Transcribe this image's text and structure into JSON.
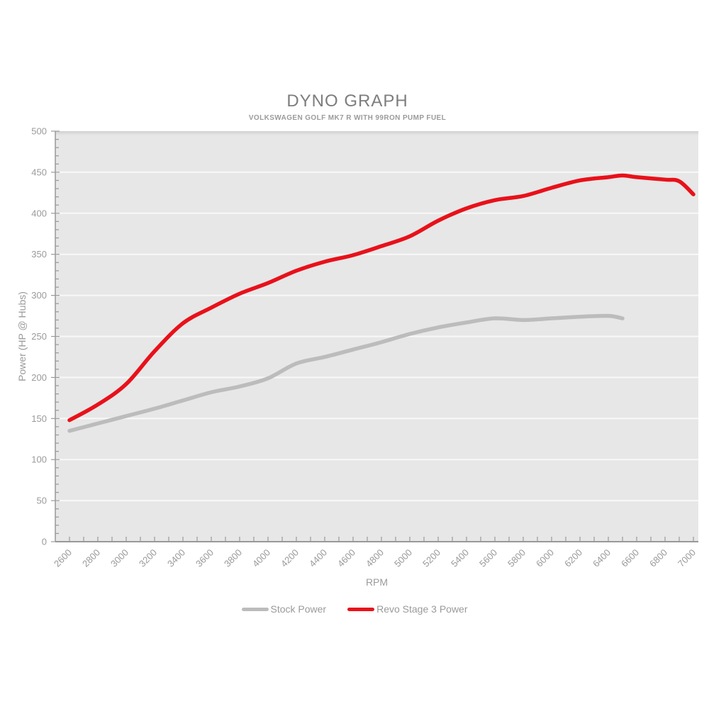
{
  "chart_data": {
    "type": "line",
    "title": "DYNO GRAPH",
    "subtitle": "VOLKSWAGEN GOLF MK7 R WITH 99RON PUMP FUEL",
    "xlabel": "RPM",
    "ylabel": "Power (HP @ Hubs)",
    "xlim": [
      2600,
      7000
    ],
    "ylim": [
      0,
      500
    ],
    "x_tick_label_step": 200,
    "x_minor_tick_step": 100,
    "y_tick_label_step": 50,
    "y_minor_tick_step": 10,
    "grid": "horizontal-only",
    "legend_position": "bottom-center",
    "plot_background": "#e7e7e7",
    "grid_color": "#f8f8f8",
    "axis_color": "#999999",
    "label_color": "#9a9a9a",
    "series": [
      {
        "name": "Stock Power",
        "color": "#bcbcbc",
        "points": [
          [
            2600,
            135
          ],
          [
            2800,
            144
          ],
          [
            3000,
            153
          ],
          [
            3200,
            162
          ],
          [
            3400,
            172
          ],
          [
            3600,
            182
          ],
          [
            3800,
            189
          ],
          [
            4000,
            199
          ],
          [
            4200,
            217
          ],
          [
            4400,
            225
          ],
          [
            4600,
            234
          ],
          [
            4800,
            243
          ],
          [
            5000,
            253
          ],
          [
            5200,
            261
          ],
          [
            5400,
            267
          ],
          [
            5600,
            272
          ],
          [
            5800,
            270
          ],
          [
            6000,
            272
          ],
          [
            6200,
            274
          ],
          [
            6400,
            275
          ],
          [
            6500,
            272
          ]
        ]
      },
      {
        "name": "Revo Stage 3 Power",
        "color": "#e8111a",
        "points": [
          [
            2600,
            148
          ],
          [
            2800,
            167
          ],
          [
            3000,
            192
          ],
          [
            3200,
            232
          ],
          [
            3400,
            266
          ],
          [
            3600,
            285
          ],
          [
            3800,
            302
          ],
          [
            4000,
            315
          ],
          [
            4200,
            330
          ],
          [
            4400,
            341
          ],
          [
            4600,
            349
          ],
          [
            4800,
            360
          ],
          [
            5000,
            372
          ],
          [
            5200,
            391
          ],
          [
            5400,
            406
          ],
          [
            5600,
            416
          ],
          [
            5800,
            421
          ],
          [
            6000,
            431
          ],
          [
            6200,
            440
          ],
          [
            6400,
            444
          ],
          [
            6500,
            446
          ],
          [
            6600,
            444
          ],
          [
            6800,
            441
          ],
          [
            6900,
            439
          ],
          [
            7000,
            423
          ]
        ]
      }
    ]
  }
}
